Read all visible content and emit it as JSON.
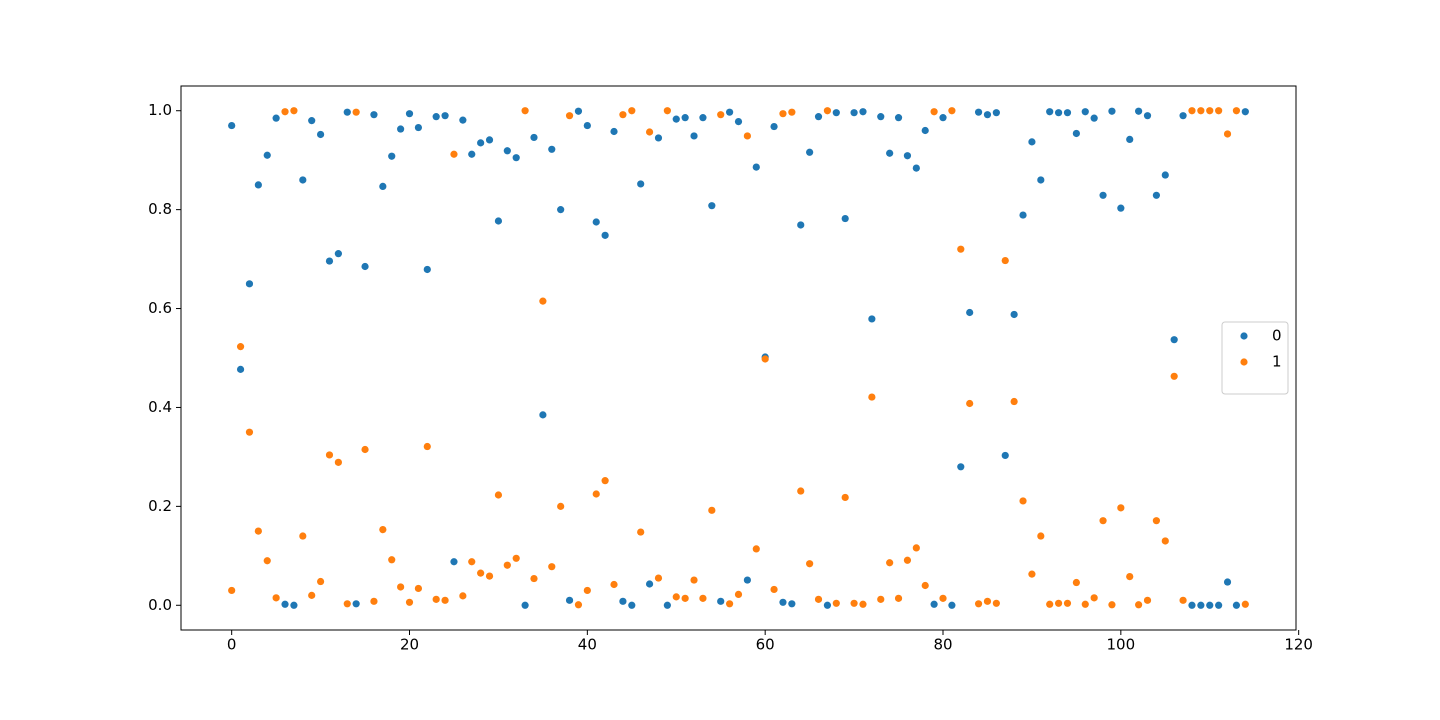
{
  "chart_data": {
    "type": "scatter",
    "x": [
      0,
      1,
      2,
      3,
      4,
      5,
      6,
      7,
      8,
      9,
      10,
      11,
      12,
      13,
      14,
      15,
      16,
      17,
      18,
      19,
      20,
      21,
      22,
      23,
      24,
      25,
      26,
      27,
      28,
      29,
      30,
      31,
      32,
      33,
      34,
      35,
      36,
      37,
      38,
      39,
      40,
      41,
      42,
      43,
      44,
      45,
      46,
      47,
      48,
      49,
      50,
      51,
      52,
      53,
      54,
      55,
      56,
      57,
      58,
      59,
      60,
      61,
      62,
      63,
      64,
      65,
      66,
      67,
      68,
      69,
      70,
      71,
      72,
      73,
      74,
      75,
      76,
      77,
      78,
      79,
      80,
      81,
      82,
      83,
      84,
      85,
      86,
      87,
      88,
      89,
      90,
      91,
      92,
      93,
      94,
      95,
      96,
      97,
      98,
      99,
      100,
      101,
      102,
      103,
      104,
      105,
      106,
      107,
      108,
      109,
      110,
      111,
      112,
      113,
      114
    ],
    "series": [
      {
        "name": "0",
        "color": "#1f77b4",
        "values": [
          0.97,
          0.477,
          0.65,
          0.85,
          0.91,
          0.985,
          0.002,
          0.0,
          0.86,
          0.98,
          0.952,
          0.696,
          0.711,
          0.997,
          0.003,
          0.685,
          0.992,
          0.847,
          0.908,
          0.963,
          0.994,
          0.966,
          0.679,
          0.988,
          0.99,
          0.088,
          0.981,
          0.912,
          0.935,
          0.941,
          0.777,
          0.919,
          0.905,
          0.0,
          0.946,
          0.385,
          0.922,
          0.8,
          0.01,
          0.999,
          0.97,
          0.775,
          0.748,
          0.958,
          0.008,
          0.0,
          0.852,
          0.043,
          0.945,
          0.0,
          0.983,
          0.986,
          0.949,
          0.986,
          0.808,
          0.008,
          0.997,
          0.978,
          0.051,
          0.886,
          0.502,
          0.968,
          0.006,
          0.003,
          0.769,
          0.916,
          0.988,
          0.0,
          0.996,
          0.782,
          0.996,
          0.998,
          0.579,
          0.988,
          0.914,
          0.986,
          0.909,
          0.884,
          0.96,
          0.002,
          0.986,
          0.0,
          0.28,
          0.592,
          0.997,
          0.992,
          0.996,
          0.303,
          0.588,
          0.789,
          0.937,
          0.86,
          0.998,
          0.996,
          0.996,
          0.954,
          0.998,
          0.985,
          0.829,
          0.999,
          0.803,
          0.942,
          0.999,
          0.99,
          0.829,
          0.87,
          0.537,
          0.99,
          0.0,
          0.0,
          0.0,
          0.0,
          0.047,
          0.0,
          0.998
        ]
      },
      {
        "name": "1",
        "color": "#ff7f0e",
        "values": [
          0.03,
          0.523,
          0.35,
          0.15,
          0.09,
          0.015,
          0.998,
          1.0,
          0.14,
          0.02,
          0.048,
          0.304,
          0.289,
          0.003,
          0.997,
          0.315,
          0.008,
          0.153,
          0.092,
          0.037,
          0.006,
          0.034,
          0.321,
          0.012,
          0.01,
          0.912,
          0.019,
          0.088,
          0.065,
          0.059,
          0.223,
          0.081,
          0.095,
          1.0,
          0.054,
          0.615,
          0.078,
          0.2,
          0.99,
          0.001,
          0.03,
          0.225,
          0.252,
          0.042,
          0.992,
          1.0,
          0.148,
          0.957,
          0.055,
          1.0,
          0.017,
          0.014,
          0.051,
          0.014,
          0.192,
          0.992,
          0.003,
          0.022,
          0.949,
          0.114,
          0.498,
          0.032,
          0.994,
          0.997,
          0.231,
          0.084,
          0.012,
          1.0,
          0.004,
          0.218,
          0.004,
          0.002,
          0.421,
          0.012,
          0.086,
          0.014,
          0.091,
          0.116,
          0.04,
          0.998,
          0.014,
          1.0,
          0.72,
          0.408,
          0.003,
          0.008,
          0.004,
          0.697,
          0.412,
          0.211,
          0.063,
          0.14,
          0.002,
          0.004,
          0.004,
          0.046,
          0.002,
          0.015,
          0.171,
          0.001,
          0.197,
          0.058,
          0.001,
          0.01,
          0.171,
          0.13,
          0.463,
          0.01,
          1.0,
          1.0,
          1.0,
          1.0,
          0.953,
          1.0,
          0.002
        ]
      }
    ],
    "xlim": [
      -5.7,
      119.7
    ],
    "ylim": [
      -0.05,
      1.05
    ],
    "xticks": [
      0,
      20,
      40,
      60,
      80,
      100,
      120
    ],
    "yticks": [
      {
        "value": 0,
        "label": "0.0"
      },
      0.2,
      0.4,
      0.6,
      0.8,
      {
        "value": 1,
        "label": "1.0"
      }
    ],
    "legend": "right"
  }
}
